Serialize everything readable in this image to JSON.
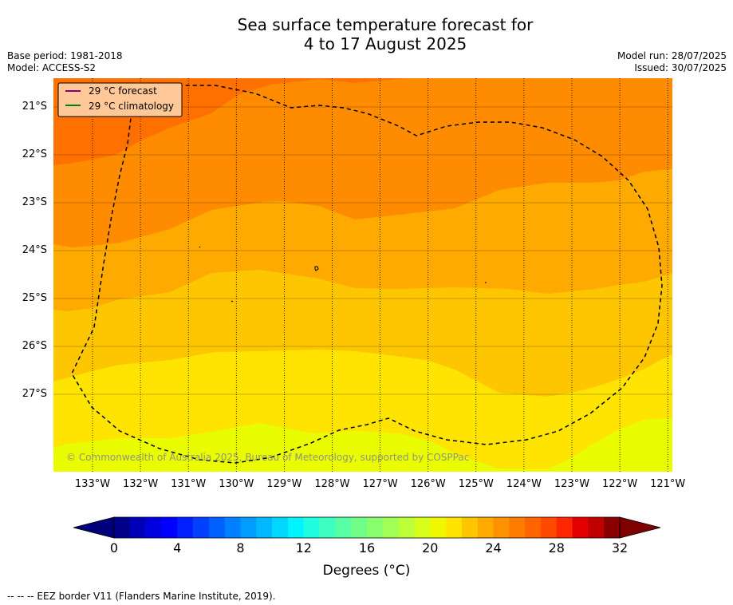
{
  "header": {
    "title_line1": "Sea surface temperature forecast for",
    "title_line2": "4 to 17 August 2025",
    "base_period": "Base period: 1981-2018",
    "model": "Model: ACCESS-S2",
    "model_run": "Model run: 28/07/2025",
    "issued": "Issued: 30/07/2025"
  },
  "map": {
    "lat_labels": [
      "21°S",
      "22°S",
      "23°S",
      "24°S",
      "25°S",
      "26°S",
      "27°S"
    ],
    "lon_labels": [
      "133°W",
      "132°W",
      "131°W",
      "130°W",
      "129°W",
      "128°W",
      "127°W",
      "126°W",
      "125°W",
      "124°W",
      "123°W",
      "122°W",
      "121°W"
    ],
    "legend": {
      "forecast": "29 °C  forecast",
      "climatology": "29 °C  climatology",
      "forecast_color": "#800080",
      "climatology_color": "#008000"
    },
    "copyright": "© Commonwealth of Australia 2025, Bureau of Meteorology, supported by COSPPac",
    "contour_colors": [
      "#e9fc00",
      "#fee400",
      "#fec600",
      "#feaa00",
      "#fe8b00",
      "#fe7100"
    ],
    "eez_line_style": "black dashed"
  },
  "colorbar": {
    "tick_labels": [
      "0",
      "4",
      "8",
      "12",
      "16",
      "20",
      "24",
      "28",
      "32"
    ],
    "title": "Degrees (°C)",
    "colors": [
      "#00008a",
      "#0000b8",
      "#0000de",
      "#0000fe",
      "#0020fe",
      "#0040fe",
      "#0060fe",
      "#0080fe",
      "#009cfe",
      "#00b8fe",
      "#00d6fe",
      "#00f4fe",
      "#20fee0",
      "#40fec0",
      "#58fea4",
      "#70fe88",
      "#88fe6c",
      "#a0fe54",
      "#bcfe38",
      "#d8fe1c",
      "#f0f800",
      "#fee400",
      "#fec600",
      "#feaa00",
      "#fe9200",
      "#fe7c00",
      "#fe6400",
      "#fe4a00",
      "#fe2600",
      "#e40000",
      "#c00000",
      "#8a0000"
    ],
    "under_color": "#00007a",
    "over_color": "#800000"
  },
  "footer": "--  --  -- EEZ border V11 (Flanders Marine Institute, 2019)."
}
